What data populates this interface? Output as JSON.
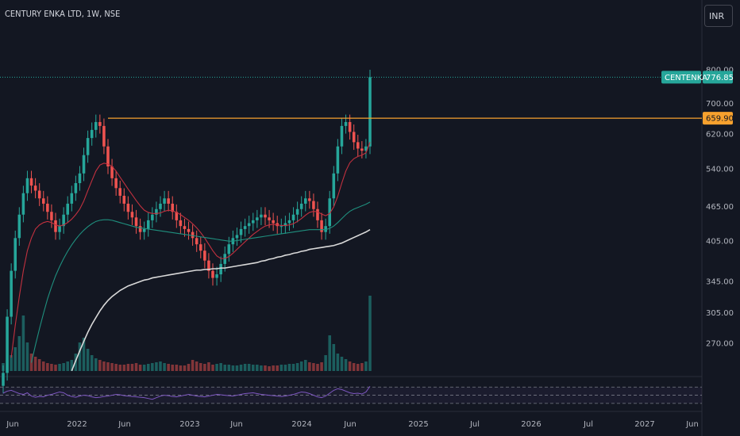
{
  "header": {
    "title": "CENTURY ENKA LTD, 1W, NSE",
    "currency": "INR"
  },
  "colors": {
    "background": "#131722",
    "up": "#26a69a",
    "down": "#ef5350",
    "ma_short": "#c2313f",
    "ma_mid": "#1f8f7e",
    "ma_long": "#d9d9d9",
    "resistance": "#f7a12e",
    "last_price": "#26a69a",
    "rsi": "#7e57c2"
  },
  "chart_data": {
    "type": "candlestick",
    "symbol": "CENTENKA",
    "last_price": "776.85",
    "resistance_level": "659.90",
    "y_ticks": [
      "800.00",
      "700.00",
      "620.00",
      "540.00",
      "465.00",
      "405.00",
      "345.00",
      "305.00",
      "270.00"
    ],
    "x_ticks": [
      "Jun",
      "2022",
      "Jun",
      "2023",
      "Jun",
      "2024",
      "Jun",
      "2025",
      "Jul",
      "2026",
      "Jul",
      "2027",
      "Jun"
    ],
    "y_scale": "log",
    "price_series": {
      "interval": "1W",
      "closes": [
        240,
        300,
        360,
        410,
        450,
        490,
        520,
        505,
        495,
        480,
        470,
        455,
        440,
        420,
        430,
        450,
        470,
        490,
        510,
        530,
        570,
        610,
        630,
        650,
        640,
        590,
        545,
        520,
        500,
        485,
        470,
        455,
        445,
        430,
        420,
        425,
        440,
        450,
        460,
        470,
        480,
        470,
        455,
        440,
        430,
        425,
        420,
        410,
        400,
        390,
        375,
        360,
        350,
        355,
        370,
        385,
        400,
        410,
        415,
        425,
        430,
        435,
        440,
        445,
        450,
        445,
        440,
        435,
        430,
        430,
        435,
        440,
        450,
        460,
        470,
        480,
        475,
        460,
        440,
        420,
        430,
        480,
        530,
        590,
        640,
        650,
        625,
        600,
        585,
        580,
        590,
        776.85
      ]
    },
    "moving_averages": [
      {
        "name": "MA short",
        "values": [
          200,
          225,
          255,
          290,
          325,
          360,
          390,
          410,
          425,
          432,
          436,
          438,
          436,
          432,
          430,
          432,
          436,
          442,
          450,
          460,
          475,
          495,
          515,
          535,
          548,
          552,
          550,
          545,
          535,
          522,
          510,
          498,
          487,
          476,
          466,
          458,
          454,
          452,
          452,
          453,
          456,
          458,
          457,
          454,
          450,
          445,
          440,
          434,
          427,
          419,
          410,
          400,
          390,
          382,
          378,
          378,
          381,
          386,
          392,
          398,
          404,
          410,
          416,
          421,
          426,
          430,
          432,
          433,
          432,
          431,
          431,
          432,
          434,
          438,
          443,
          449,
          454,
          456,
          455,
          451,
          448,
          452,
          464,
          484,
          510,
          535,
          553,
          562,
          567,
          570,
          575,
          600
        ]
      },
      {
        "name": "MA mid",
        "values": [
          150,
          160,
          172,
          185,
          200,
          216,
          233,
          250,
          268,
          286,
          304,
          322,
          338,
          353,
          366,
          378,
          389,
          399,
          408,
          416,
          423,
          429,
          434,
          438,
          440,
          441,
          441,
          440,
          438,
          436,
          434,
          432,
          430,
          428,
          427,
          426,
          425,
          424,
          423,
          422,
          421,
          420,
          419,
          418,
          417,
          416,
          415,
          414,
          413,
          412,
          411,
          410,
          409,
          408,
          407,
          406,
          405,
          405,
          406,
          407,
          408,
          409,
          410,
          411,
          412,
          413,
          414,
          415,
          416,
          417,
          418,
          419,
          420,
          421,
          422,
          423,
          424,
          424,
          424,
          424,
          424,
          426,
          430,
          436,
          443,
          450,
          456,
          460,
          463,
          466,
          469,
          473
        ]
      },
      {
        "name": "MA long",
        "values": [
          100,
          104,
          109,
          115,
          121,
          128,
          136,
          144,
          153,
          162,
          172,
          182,
          192,
          202,
          212,
          222,
          232,
          242,
          252,
          262,
          272,
          282,
          291,
          299,
          307,
          314,
          320,
          325,
          329,
          333,
          336,
          339,
          341,
          343,
          345,
          347,
          348,
          350,
          351,
          352,
          353,
          354,
          355,
          356,
          357,
          358,
          359,
          360,
          361,
          361,
          362,
          362,
          363,
          363,
          364,
          364,
          365,
          366,
          367,
          368,
          369,
          370,
          371,
          372,
          374,
          375,
          377,
          378,
          380,
          381,
          383,
          384,
          386,
          387,
          389,
          390,
          392,
          393,
          394,
          395,
          396,
          397,
          398,
          400,
          402,
          405,
          408,
          411,
          414,
          417,
          420,
          424
        ]
      }
    ],
    "volume": [
      10,
      14,
      20,
      30,
      44,
      70,
      36,
      22,
      18,
      15,
      12,
      10,
      9,
      8,
      9,
      10,
      12,
      14,
      22,
      36,
      42,
      28,
      20,
      16,
      14,
      12,
      11,
      10,
      9,
      8,
      8,
      9,
      9,
      10,
      8,
      8,
      9,
      10,
      11,
      12,
      10,
      9,
      8,
      8,
      7,
      7,
      9,
      14,
      12,
      10,
      9,
      11,
      8,
      9,
      10,
      8,
      8,
      7,
      7,
      8,
      9,
      9,
      8,
      8,
      7,
      7,
      6,
      7,
      7,
      8,
      8,
      9,
      9,
      10,
      12,
      14,
      11,
      10,
      9,
      11,
      20,
      45,
      34,
      22,
      18,
      15,
      12,
      10,
      9,
      10,
      12,
      95
    ],
    "rsi": [
      55,
      60,
      62,
      58,
      54,
      52,
      56,
      48,
      45,
      47,
      46,
      50,
      52,
      55,
      58,
      56,
      50,
      47,
      45,
      48,
      50,
      49,
      46,
      44,
      45,
      47,
      48,
      50,
      52,
      51,
      49,
      48,
      47,
      46,
      45,
      44,
      42,
      40,
      44,
      48,
      50,
      49,
      47,
      46,
      48,
      50,
      52,
      50,
      48,
      47,
      46,
      48,
      50,
      52,
      51,
      50,
      49,
      48,
      50,
      52,
      54,
      55,
      56,
      54,
      52,
      51,
      50,
      49,
      48,
      47,
      48,
      50,
      52,
      55,
      58,
      57,
      54,
      50,
      46,
      44,
      48,
      55,
      62,
      66,
      64,
      60,
      56,
      54,
      55,
      53,
      58,
      72
    ]
  }
}
